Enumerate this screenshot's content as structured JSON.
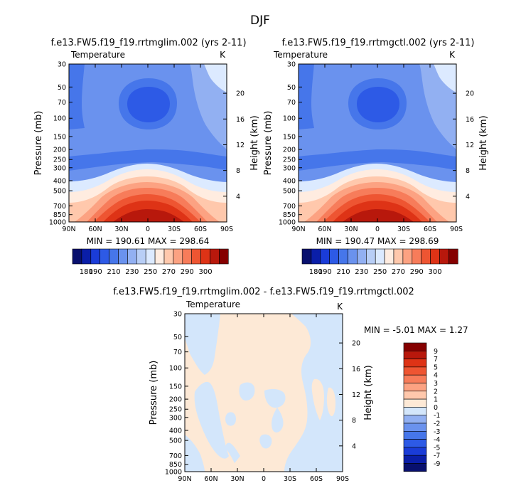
{
  "page_title": "DJF",
  "colors": {
    "temp_scale": [
      "#08106e",
      "#0a1ea8",
      "#1a3cd8",
      "#2d5ae6",
      "#4676ea",
      "#6a92ee",
      "#92b0f2",
      "#b8cef6",
      "#dceaff",
      "#ffece0",
      "#ffc8ac",
      "#fca282",
      "#f77c5a",
      "#ee5532",
      "#de3316",
      "#b8180c",
      "#850000"
    ],
    "diff_scale": [
      "#08106e",
      "#0a1ea8",
      "#1a3cd8",
      "#2d5ae6",
      "#4676ea",
      "#6a92ee",
      "#92b0f2",
      "#d3e6fb",
      "#fde9d6",
      "#ffc8ac",
      "#fca282",
      "#f77c5a",
      "#ee5532",
      "#de3316",
      "#b8180c",
      "#850000"
    ]
  },
  "chart_data": [
    {
      "type": "contour",
      "title": "f.e13.FW5.f19_f19.rrtmglim.002 (yrs 2-11)",
      "variable": "Temperature",
      "units": "K",
      "ylabel": "Pressure (mb)",
      "ylabel_right": "Height (km)",
      "x_ticks": [
        "90N",
        "60N",
        "30N",
        "0",
        "30S",
        "60S",
        "90S"
      ],
      "pressure_ticks": [
        "30",
        "50",
        "70",
        "100",
        "150",
        "200",
        "250",
        "300",
        "400",
        "500",
        "700",
        "850",
        "1000"
      ],
      "height_ticks": [
        "20",
        "16",
        "12",
        "8",
        "4"
      ],
      "min_text": "MIN = 190.61   MAX = 298.64",
      "min": 190.61,
      "max": 298.64,
      "colorbar_labels": [
        "180",
        "190",
        "210",
        "230",
        "250",
        "270",
        "290",
        "300"
      ]
    },
    {
      "type": "contour",
      "title": "f.e13.FW5.f19_f19.rrtmgctl.002 (yrs 2-11)",
      "variable": "Temperature",
      "units": "K",
      "ylabel": "Pressure (mb)",
      "ylabel_right": "Height (km)",
      "x_ticks": [
        "90N",
        "60N",
        "30N",
        "0",
        "30S",
        "60S",
        "90S"
      ],
      "pressure_ticks": [
        "30",
        "50",
        "70",
        "100",
        "150",
        "200",
        "250",
        "300",
        "400",
        "500",
        "700",
        "850",
        "1000"
      ],
      "height_ticks": [
        "20",
        "16",
        "12",
        "8",
        "4"
      ],
      "min_text": "MIN = 190.47   MAX = 298.69",
      "min": 190.47,
      "max": 298.69,
      "colorbar_labels": [
        "180",
        "190",
        "210",
        "230",
        "250",
        "270",
        "290",
        "300"
      ]
    },
    {
      "type": "contour",
      "title": "f.e13.FW5.f19_f19.rrtmglim.002 - f.e13.FW5.f19_f19.rrtmgctl.002",
      "variable": "Temperature",
      "units": "K",
      "ylabel": "Pressure (mb)",
      "ylabel_right": "Height (km)",
      "x_ticks": [
        "90N",
        "60N",
        "30N",
        "0",
        "30S",
        "60S",
        "90S"
      ],
      "pressure_ticks": [
        "30",
        "50",
        "70",
        "100",
        "150",
        "200",
        "250",
        "300",
        "400",
        "500",
        "700",
        "850",
        "1000"
      ],
      "height_ticks": [
        "20",
        "16",
        "12",
        "8",
        "4"
      ],
      "min_text": "MIN =   -5.01   MAX =    1.27",
      "min": -5.01,
      "max": 1.27,
      "colorbar_labels": [
        "9",
        "7",
        "5",
        "4",
        "3",
        "2",
        "1",
        "0",
        "-1",
        "-2",
        "-3",
        "-4",
        "-5",
        "-7",
        "-9"
      ]
    }
  ]
}
